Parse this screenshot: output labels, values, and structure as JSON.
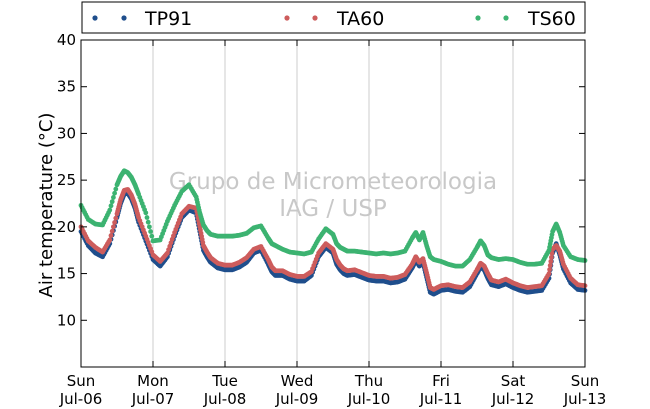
{
  "chart_data": {
    "type": "scatter",
    "title": "",
    "xlabel": "",
    "ylabel": "Air temperature (°C)",
    "xlim": [
      0,
      7
    ],
    "ylim": [
      5,
      40
    ],
    "yticks": [
      10,
      15,
      20,
      25,
      30,
      35,
      40
    ],
    "xticks": [
      {
        "x": 0,
        "day": "Sun",
        "date": "Jul-06"
      },
      {
        "x": 1,
        "day": "Mon",
        "date": "Jul-07"
      },
      {
        "x": 2,
        "day": "Tue",
        "date": "Jul-08"
      },
      {
        "x": 3,
        "day": "Wed",
        "date": "Jul-09"
      },
      {
        "x": 4,
        "day": "Thu",
        "date": "Jul-10"
      },
      {
        "x": 5,
        "day": "Fri",
        "date": "Jul-11"
      },
      {
        "x": 6,
        "day": "Sat",
        "date": "Jul-12"
      },
      {
        "x": 7,
        "day": "Sun",
        "date": "Jul-13"
      }
    ],
    "grid": "vertical",
    "legend_position": "top",
    "watermark": [
      "Grupo de Micrometeorologia",
      "IAG / USP"
    ],
    "series": [
      {
        "name": "TP91",
        "color": "#1f4e8c",
        "x": [
          0,
          0.1,
          0.2,
          0.3,
          0.4,
          0.5,
          0.55,
          0.6,
          0.65,
          0.7,
          0.75,
          0.8,
          0.9,
          1.0,
          1.1,
          1.2,
          1.3,
          1.4,
          1.5,
          1.6,
          1.65,
          1.7,
          1.75,
          1.8,
          1.9,
          2.0,
          2.1,
          2.2,
          2.3,
          2.4,
          2.5,
          2.6,
          2.65,
          2.7,
          2.8,
          2.9,
          3.0,
          3.1,
          3.2,
          3.3,
          3.4,
          3.5,
          3.55,
          3.6,
          3.65,
          3.7,
          3.8,
          3.9,
          4.0,
          4.1,
          4.2,
          4.3,
          4.4,
          4.5,
          4.6,
          4.65,
          4.7,
          4.75,
          4.8,
          4.85,
          4.9,
          5.0,
          5.1,
          5.2,
          5.3,
          5.4,
          5.5,
          5.55,
          5.6,
          5.65,
          5.7,
          5.8,
          5.9,
          6.0,
          6.1,
          6.2,
          6.3,
          6.4,
          6.5,
          6.55,
          6.6,
          6.65,
          6.7,
          6.8,
          6.9,
          7.0
        ],
        "y": [
          19.5,
          18,
          17.2,
          16.8,
          18.2,
          21,
          22.5,
          23.5,
          23.6,
          23,
          22,
          20.5,
          18.5,
          16.5,
          15.8,
          16.8,
          19,
          21,
          21.8,
          21.5,
          19.5,
          17.5,
          16.8,
          16.2,
          15.6,
          15.4,
          15.4,
          15.7,
          16.2,
          17.2,
          17.5,
          16,
          15.2,
          14.8,
          14.8,
          14.4,
          14.2,
          14.2,
          14.8,
          16.8,
          17.8,
          17.2,
          16,
          15.4,
          15,
          14.8,
          14.9,
          14.6,
          14.3,
          14.2,
          14.2,
          14,
          14.1,
          14.4,
          15.6,
          16.4,
          15.8,
          16.2,
          14.6,
          13,
          12.8,
          13.2,
          13.3,
          13.1,
          13,
          13.6,
          15,
          15.7,
          15.4,
          14.5,
          13.8,
          13.6,
          13.9,
          13.5,
          13.2,
          13.0,
          13.1,
          13.2,
          14.5,
          17.2,
          18.2,
          17,
          15.5,
          14,
          13.3,
          13.2
        ]
      },
      {
        "name": "TA60",
        "color": "#cd5c5c",
        "x": [
          0,
          0.1,
          0.2,
          0.3,
          0.4,
          0.5,
          0.55,
          0.6,
          0.65,
          0.7,
          0.75,
          0.8,
          0.9,
          1.0,
          1.1,
          1.2,
          1.3,
          1.4,
          1.5,
          1.6,
          1.65,
          1.7,
          1.75,
          1.8,
          1.9,
          2.0,
          2.1,
          2.2,
          2.3,
          2.4,
          2.5,
          2.6,
          2.65,
          2.7,
          2.8,
          2.9,
          3.0,
          3.1,
          3.2,
          3.3,
          3.4,
          3.5,
          3.55,
          3.6,
          3.65,
          3.7,
          3.8,
          3.9,
          4.0,
          4.1,
          4.2,
          4.3,
          4.4,
          4.5,
          4.6,
          4.65,
          4.7,
          4.75,
          4.8,
          4.85,
          4.9,
          5.0,
          5.1,
          5.2,
          5.3,
          5.4,
          5.5,
          5.55,
          5.6,
          5.65,
          5.7,
          5.8,
          5.9,
          6.0,
          6.1,
          6.2,
          6.3,
          6.4,
          6.5,
          6.55,
          6.6,
          6.65,
          6.7,
          6.8,
          6.9,
          7.0
        ],
        "y": [
          20,
          18.5,
          17.8,
          17.3,
          18.6,
          21.4,
          22.9,
          23.9,
          24,
          23.4,
          22.4,
          21,
          19,
          17,
          16.3,
          17.2,
          19.4,
          21.4,
          22.2,
          22,
          20,
          18,
          17.3,
          16.7,
          16.1,
          15.9,
          15.9,
          16.2,
          16.7,
          17.6,
          17.9,
          16.5,
          15.7,
          15.3,
          15.3,
          14.9,
          14.7,
          14.7,
          15.2,
          17.2,
          18.2,
          17.6,
          16.5,
          15.9,
          15.5,
          15.3,
          15.4,
          15.1,
          14.8,
          14.7,
          14.7,
          14.5,
          14.6,
          14.9,
          16,
          16.8,
          16.2,
          16.6,
          15.1,
          13.5,
          13.3,
          13.7,
          13.8,
          13.6,
          13.5,
          14.1,
          15.4,
          16.1,
          15.8,
          15,
          14.3,
          14.1,
          14.4,
          14,
          13.7,
          13.5,
          13.6,
          13.7,
          15,
          17.6,
          18,
          17.4,
          16,
          14.5,
          13.8,
          13.7
        ]
      },
      {
        "name": "TS60",
        "color": "#3cb371",
        "x": [
          0,
          0.1,
          0.2,
          0.3,
          0.4,
          0.5,
          0.55,
          0.6,
          0.65,
          0.7,
          0.75,
          0.8,
          0.9,
          1.0,
          1.1,
          1.2,
          1.3,
          1.4,
          1.5,
          1.6,
          1.65,
          1.7,
          1.75,
          1.8,
          1.9,
          2.0,
          2.1,
          2.2,
          2.3,
          2.4,
          2.5,
          2.6,
          2.65,
          2.7,
          2.8,
          2.9,
          3.0,
          3.1,
          3.2,
          3.3,
          3.4,
          3.5,
          3.55,
          3.6,
          3.65,
          3.7,
          3.8,
          3.9,
          4.0,
          4.1,
          4.2,
          4.3,
          4.4,
          4.5,
          4.6,
          4.65,
          4.7,
          4.75,
          4.8,
          4.85,
          4.9,
          5.0,
          5.1,
          5.2,
          5.3,
          5.4,
          5.5,
          5.55,
          5.6,
          5.65,
          5.7,
          5.8,
          5.9,
          6.0,
          6.1,
          6.2,
          6.3,
          6.4,
          6.5,
          6.55,
          6.6,
          6.65,
          6.7,
          6.8,
          6.9,
          7.0
        ],
        "y": [
          22.3,
          20.8,
          20.3,
          20.2,
          21.8,
          24.5,
          25.4,
          26,
          25.8,
          25.3,
          24.5,
          23.5,
          21.5,
          18.5,
          18.6,
          20.6,
          22.3,
          23.8,
          24.5,
          23.2,
          21.5,
          20.2,
          19.6,
          19.2,
          19,
          19,
          19,
          19.1,
          19.3,
          19.9,
          20.1,
          18.8,
          18.2,
          18,
          17.6,
          17.3,
          17.2,
          17.1,
          17.3,
          18.7,
          19.8,
          19.2,
          18.2,
          17.8,
          17.6,
          17.4,
          17.4,
          17.3,
          17.2,
          17.1,
          17.2,
          17.1,
          17.2,
          17.4,
          18.8,
          19.4,
          18.6,
          19.4,
          18,
          16.8,
          16.5,
          16.3,
          16.0,
          15.8,
          15.8,
          16.5,
          17.8,
          18.5,
          18,
          17,
          16.7,
          16.5,
          16.6,
          16.5,
          16.2,
          16.0,
          16.0,
          16.1,
          17.5,
          19.5,
          20.3,
          19.4,
          18,
          16.8,
          16.5,
          16.4
        ]
      }
    ]
  }
}
